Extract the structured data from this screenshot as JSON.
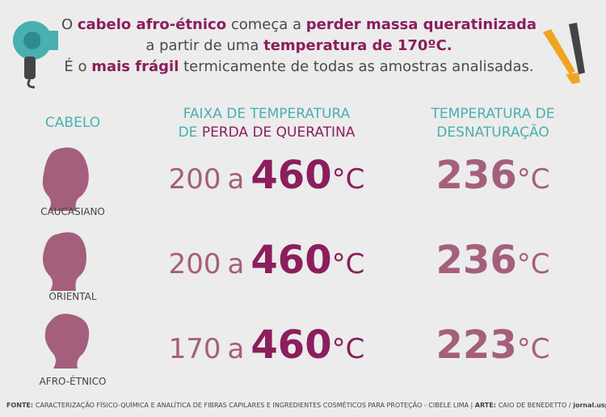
{
  "header": {
    "lines": [
      [
        {
          "text": "O ",
          "highlight": false
        },
        {
          "text": "cabelo afro-étnico",
          "highlight": true
        },
        {
          "text": " começa a ",
          "highlight": false
        },
        {
          "text": "perder massa queratinizada",
          "highlight": true
        }
      ],
      [
        {
          "text": "a partir de uma ",
          "highlight": false
        },
        {
          "text": "temperatura de 170ºC.",
          "highlight": true
        }
      ],
      [
        {
          "text": "É o ",
          "highlight": false
        },
        {
          "text": "mais frágil",
          "highlight": true
        },
        {
          "text": " termicamente de todas as amostras analisadas.",
          "highlight": false
        }
      ]
    ]
  },
  "table": {
    "columns": {
      "hair": "CABELO",
      "range": [
        "FAIXA DE TEMPERATURA",
        "DE ",
        "PERDA DE QUERATINA"
      ],
      "denaturation": [
        "TEMPERATURA DE",
        "DESNATURAÇÃO"
      ]
    },
    "unit": "°C",
    "connector": "a",
    "rows": [
      {
        "label": "CAUCASIANO",
        "low": 200,
        "high": 460,
        "denaturation": 236
      },
      {
        "label": "ORIENTAL",
        "low": 200,
        "high": 460,
        "denaturation": 236
      },
      {
        "label": "AFRO-ÉTNICO",
        "low": 170,
        "high": 460,
        "denaturation": 223
      }
    ]
  },
  "footer": [
    {
      "text": "FONTE: ",
      "bold": true
    },
    {
      "text": "CARACTERIZAÇÃO FÍSICO-QUÍMICA E ANALÍTICA DE FIBRAS CAPILARES E INGREDIENTES COSMÉTICOS PARA PROTEÇÃO - CIBELE LIMA | ",
      "bold": false
    },
    {
      "text": "ARTE: ",
      "bold": true
    },
    {
      "text": "CAIO DE BENEDETTO / ",
      "bold": false
    },
    {
      "text": "jornal.usp.br",
      "bold": true
    }
  ]
}
